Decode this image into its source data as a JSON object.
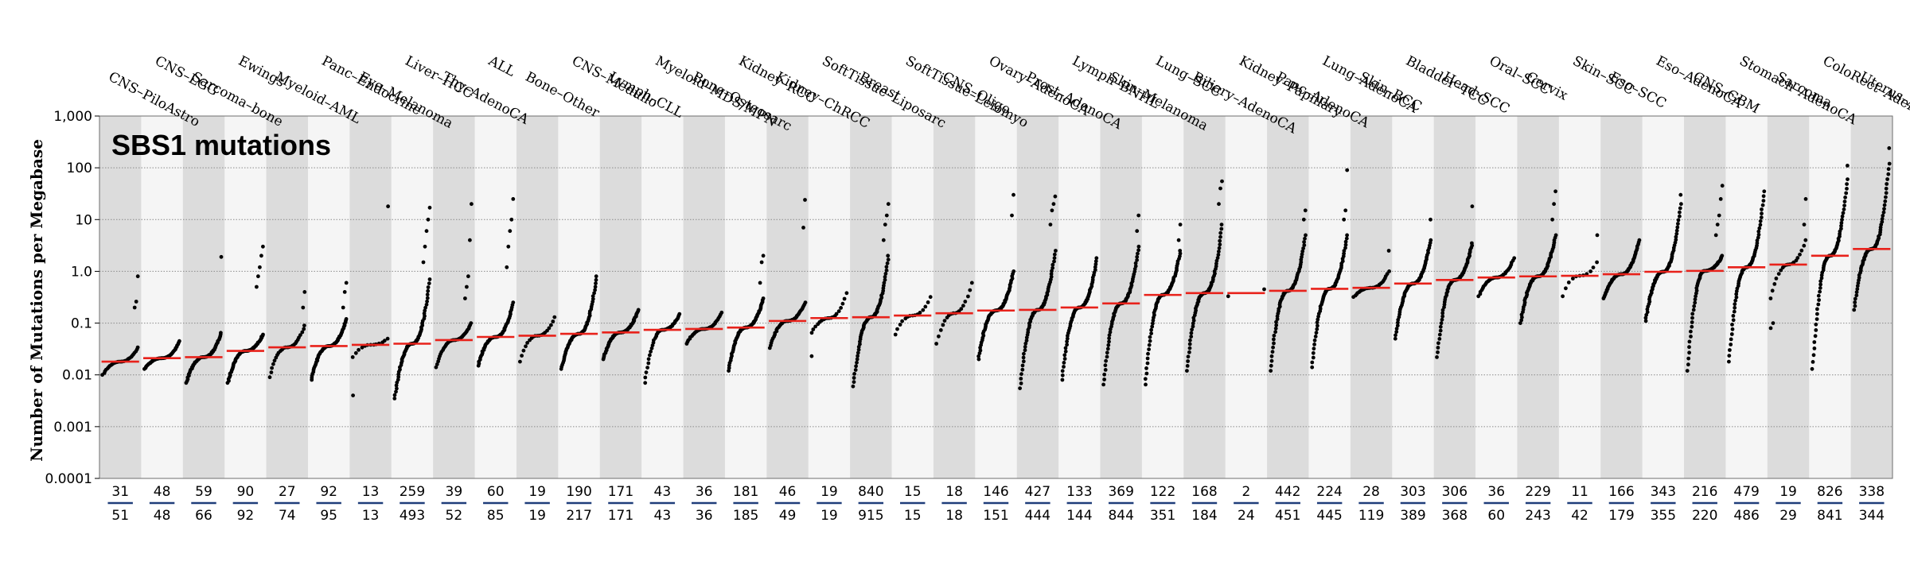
{
  "chart_data": {
    "type": "scatter",
    "title": "SBS1 mutations",
    "ylabel": "Number of Mutations per Megabase",
    "yscale": "log",
    "ylim": [
      0.0001,
      1000
    ],
    "yticks": [
      {
        "value": 0.0001,
        "label": "0.0001"
      },
      {
        "value": 0.001,
        "label": "0.001"
      },
      {
        "value": 0.01,
        "label": "0.01"
      },
      {
        "value": 0.1,
        "label": "0.1"
      },
      {
        "value": 1,
        "label": "1.0"
      },
      {
        "value": 10,
        "label": "10"
      },
      {
        "value": 100,
        "label": "100"
      },
      {
        "value": 1000,
        "label": "1,000"
      }
    ],
    "grid": "horizontal dotted",
    "colors": {
      "median": "#e8221b",
      "point": "#000000",
      "band_dark": "#dcdcdc",
      "band_light": "#f5f5f5",
      "count_bar": "#1f3d7a"
    },
    "categories": [
      {
        "name": "CNS–PiloAstro",
        "count_top": "31",
        "count_bottom": "51",
        "median": 0.018,
        "min": 0.01,
        "max": 0.034,
        "outliers": [
          0.2,
          0.26,
          0.8
        ]
      },
      {
        "name": "CNS–LGG",
        "count_top": "48",
        "count_bottom": "48",
        "median": 0.021,
        "min": 0.013,
        "max": 0.045,
        "outliers": []
      },
      {
        "name": "Sarcoma–bone",
        "count_top": "59",
        "count_bottom": "66",
        "median": 0.022,
        "min": 0.007,
        "max": 0.065,
        "outliers": [
          1.9
        ]
      },
      {
        "name": "Ewings",
        "count_top": "90",
        "count_bottom": "92",
        "median": 0.029,
        "min": 0.007,
        "max": 0.06,
        "outliers": [
          0.5,
          0.8,
          1.2,
          2.0,
          3.0
        ]
      },
      {
        "name": "Myeloid–AML",
        "count_top": "27",
        "count_bottom": "74",
        "median": 0.034,
        "min": 0.009,
        "max": 0.09,
        "outliers": [
          0.2,
          0.4
        ]
      },
      {
        "name": "Panc–Endocrine",
        "count_top": "92",
        "count_bottom": "95",
        "median": 0.036,
        "min": 0.008,
        "max": 0.12,
        "outliers": [
          0.2,
          0.4,
          0.6
        ]
      },
      {
        "name": "Eye–Melanoma",
        "count_top": "13",
        "count_bottom": "13",
        "median": 0.038,
        "min": 0.022,
        "max": 0.05,
        "outliers": [
          0.004,
          18
        ]
      },
      {
        "name": "Liver–HCC",
        "count_top": "259",
        "count_bottom": "493",
        "median": 0.04,
        "min": 0.0035,
        "max": 0.7,
        "outliers": [
          1.5,
          3,
          6,
          10,
          17
        ]
      },
      {
        "name": "Thy–AdenoCA",
        "count_top": "39",
        "count_bottom": "52",
        "median": 0.047,
        "min": 0.014,
        "max": 0.1,
        "outliers": [
          0.3,
          0.5,
          0.8,
          4,
          20
        ]
      },
      {
        "name": "ALL",
        "count_top": "60",
        "count_bottom": "85",
        "median": 0.054,
        "min": 0.015,
        "max": 0.25,
        "outliers": [
          1.2,
          3,
          6,
          10,
          25
        ]
      },
      {
        "name": "Bone–Other",
        "count_top": "19",
        "count_bottom": "19",
        "median": 0.057,
        "min": 0.018,
        "max": 0.13,
        "outliers": []
      },
      {
        "name": "CNS–Medullo",
        "count_top": "190",
        "count_bottom": "217",
        "median": 0.062,
        "min": 0.013,
        "max": 0.8,
        "outliers": []
      },
      {
        "name": "Lymph–CLL",
        "count_top": "171",
        "count_bottom": "171",
        "median": 0.066,
        "min": 0.02,
        "max": 0.18,
        "outliers": []
      },
      {
        "name": "Myeloid–MDS/MPN",
        "count_top": "43",
        "count_bottom": "43",
        "median": 0.074,
        "min": 0.007,
        "max": 0.15,
        "outliers": []
      },
      {
        "name": "Bone–Osteosarc",
        "count_top": "36",
        "count_bottom": "36",
        "median": 0.077,
        "min": 0.04,
        "max": 0.16,
        "outliers": []
      },
      {
        "name": "Kidney–RCC",
        "count_top": "181",
        "count_bottom": "185",
        "median": 0.082,
        "min": 0.012,
        "max": 0.3,
        "outliers": [
          0.6,
          1.5,
          2.0
        ]
      },
      {
        "name": "Kidney–ChRCC",
        "count_top": "46",
        "count_bottom": "49",
        "median": 0.11,
        "min": 0.033,
        "max": 0.25,
        "outliers": [
          7,
          24
        ]
      },
      {
        "name": "SoftTissue–Liposarc",
        "count_top": "19",
        "count_bottom": "19",
        "median": 0.125,
        "min": 0.065,
        "max": 0.38,
        "outliers": [
          0.023
        ]
      },
      {
        "name": "Breast",
        "count_top": "840",
        "count_bottom": "915",
        "median": 0.13,
        "min": 0.006,
        "max": 2.0,
        "outliers": [
          4,
          8,
          12,
          20
        ]
      },
      {
        "name": "SoftTissue–Leiomyo",
        "count_top": "15",
        "count_bottom": "15",
        "median": 0.14,
        "min": 0.06,
        "max": 0.32,
        "outliers": []
      },
      {
        "name": "CNS–Oligo",
        "count_top": "18",
        "count_bottom": "18",
        "median": 0.155,
        "min": 0.04,
        "max": 0.6,
        "outliers": []
      },
      {
        "name": "Ovary–AdenoCA",
        "count_top": "146",
        "count_bottom": "151",
        "median": 0.175,
        "min": 0.02,
        "max": 1.0,
        "outliers": [
          12,
          30
        ]
      },
      {
        "name": "Prost–AdenoCA",
        "count_top": "427",
        "count_bottom": "444",
        "median": 0.18,
        "min": 0.0055,
        "max": 2.5,
        "outliers": [
          8,
          15,
          20,
          28
        ]
      },
      {
        "name": "Lymph–BNHL",
        "count_top": "133",
        "count_bottom": "144",
        "median": 0.2,
        "min": 0.008,
        "max": 1.8,
        "outliers": []
      },
      {
        "name": "Skin–Melanoma",
        "count_top": "369",
        "count_bottom": "844",
        "median": 0.24,
        "min": 0.0065,
        "max": 3.0,
        "outliers": [
          6,
          12
        ]
      },
      {
        "name": "Lung–SCC",
        "count_top": "122",
        "count_bottom": "351",
        "median": 0.35,
        "min": 0.0065,
        "max": 2.5,
        "outliers": [
          4,
          8
        ]
      },
      {
        "name": "Biliary–AdenoCA",
        "count_top": "168",
        "count_bottom": "184",
        "median": 0.38,
        "min": 0.012,
        "max": 8,
        "outliers": [
          20,
          40,
          55
        ]
      },
      {
        "name": "Kidney–Papillary",
        "count_top": "2",
        "count_bottom": "24",
        "median": 0.38,
        "min": 0.33,
        "max": 0.45,
        "outliers": []
      },
      {
        "name": "Panc–AdenoCA",
        "count_top": "442",
        "count_bottom": "451",
        "median": 0.42,
        "min": 0.012,
        "max": 5,
        "outliers": [
          10,
          15
        ]
      },
      {
        "name": "Lung–AdenoCA",
        "count_top": "224",
        "count_bottom": "445",
        "median": 0.46,
        "min": 0.014,
        "max": 5,
        "outliers": [
          10,
          15,
          90
        ]
      },
      {
        "name": "Skin–BCC",
        "count_top": "28",
        "count_bottom": "119",
        "median": 0.48,
        "min": 0.32,
        "max": 1.0,
        "outliers": [
          2.5
        ]
      },
      {
        "name": "Bladder–TCC",
        "count_top": "303",
        "count_bottom": "389",
        "median": 0.58,
        "min": 0.05,
        "max": 4,
        "outliers": [
          10
        ]
      },
      {
        "name": "Head–SCC",
        "count_top": "306",
        "count_bottom": "368",
        "median": 0.68,
        "min": 0.022,
        "max": 3.5,
        "outliers": [
          18
        ]
      },
      {
        "name": "Oral–SCC",
        "count_top": "36",
        "count_bottom": "60",
        "median": 0.76,
        "min": 0.33,
        "max": 1.8,
        "outliers": []
      },
      {
        "name": "Cervix",
        "count_top": "229",
        "count_bottom": "243",
        "median": 0.8,
        "min": 0.1,
        "max": 5,
        "outliers": [
          10,
          20,
          35
        ]
      },
      {
        "name": "Skin–SCC",
        "count_top": "11",
        "count_bottom": "42",
        "median": 0.82,
        "min": 0.33,
        "max": 1.5,
        "outliers": [
          5
        ]
      },
      {
        "name": "Eso–SCC",
        "count_top": "166",
        "count_bottom": "179",
        "median": 0.88,
        "min": 0.3,
        "max": 4,
        "outliers": []
      },
      {
        "name": "Eso–AdenoCA",
        "count_top": "343",
        "count_bottom": "355",
        "median": 0.98,
        "min": 0.11,
        "max": 20,
        "outliers": [
          30
        ]
      },
      {
        "name": "CNS–GBM",
        "count_top": "216",
        "count_bottom": "220",
        "median": 1.02,
        "min": 0.012,
        "max": 2.0,
        "outliers": [
          5,
          8,
          12,
          25,
          45
        ]
      },
      {
        "name": "Stomach–AdenoCA",
        "count_top": "479",
        "count_bottom": "486",
        "median": 1.2,
        "min": 0.018,
        "max": 35,
        "outliers": []
      },
      {
        "name": "Sarcoma",
        "count_top": "19",
        "count_bottom": "29",
        "median": 1.35,
        "min": 0.3,
        "max": 4,
        "outliers": [
          0.08,
          0.1,
          8,
          25
        ]
      },
      {
        "name": "ColoRect–AdenoCA",
        "count_top": "826",
        "count_bottom": "841",
        "median": 2.0,
        "min": 0.013,
        "max": 60,
        "outliers": [
          110
        ]
      },
      {
        "name": "Uterus–AdenoCA",
        "count_top": "338",
        "count_bottom": "344",
        "median": 2.7,
        "min": 0.18,
        "max": 120,
        "outliers": [
          240
        ]
      }
    ]
  }
}
